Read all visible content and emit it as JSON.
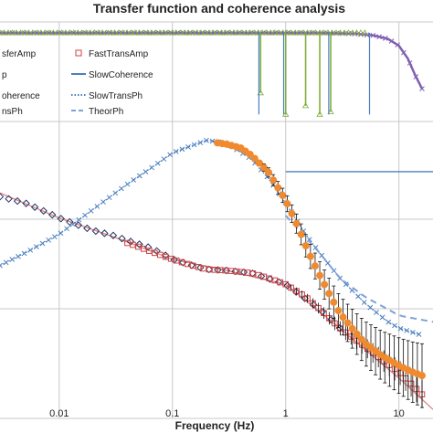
{
  "chart_data": {
    "type": "scatter",
    "title": "Transfer function and coherence analysis",
    "xlabel": "Frequency (Hz)",
    "x_scale": "log",
    "xlim": [
      0.003,
      20
    ],
    "x_ticks": [
      "0.01",
      "0.1",
      "1",
      "10"
    ],
    "grid": true,
    "legend_position": "top-left",
    "legend": [
      {
        "text": "sferAmp",
        "kind": "diamond",
        "color": "#1f3864"
      },
      {
        "text": "FastTransAmp",
        "kind": "square",
        "color": "#d04040"
      },
      {
        "text": "p",
        "kind": "triangle",
        "color": "#7fae3c"
      },
      {
        "text": "SlowCoherence",
        "kind": "line",
        "color": "#4a7fc0"
      },
      {
        "text": "oherence",
        "kind": "xmark",
        "color": "#8060b0"
      },
      {
        "text": "SlowTransPh",
        "kind": "dotted",
        "color": "#4a7fc0"
      },
      {
        "text": "nsPh",
        "kind": "circle",
        "color": "#f08a2e"
      },
      {
        "text": "TheorPh",
        "kind": "dashed",
        "color": "#7fa0d8"
      }
    ],
    "colors": {
      "amp_diamond": "#1f3864",
      "fast_amp": "#d04040",
      "theory_amp": "#e08080",
      "coh_green": "#7fae3c",
      "coh_purple": "#8060b0",
      "slow_coherence": "#4a7fc0",
      "slow_phase": "#4a7fc0",
      "fast_phase": "#f08a2e",
      "theory_phase": "#7fa0d8",
      "error_bar": "#111111"
    },
    "fast_coherence": {
      "x": [
        0.003,
        0.01,
        0.05,
        0.1,
        0.3,
        0.5,
        0.6,
        0.8,
        1.0,
        1.5,
        2.0,
        2.5,
        3.0,
        5.0
      ],
      "y": [
        1.0,
        1.0,
        1.0,
        1.0,
        1.0,
        1.0,
        0.3,
        1.0,
        0.1,
        0.2,
        0.1,
        0.1,
        0.95,
        1.0
      ]
    },
    "slow_coherence": {
      "x": [
        0.003,
        0.1,
        1,
        2,
        4,
        6,
        8,
        10,
        12,
        14,
        16
      ],
      "y": [
        1.0,
        1.0,
        1.0,
        1.0,
        0.99,
        0.97,
        0.93,
        0.85,
        0.7,
        0.5,
        0.35
      ]
    },
    "slow_trans_ph": {
      "x": [
        0.003,
        0.005,
        0.01,
        0.02,
        0.04,
        0.07,
        0.1,
        0.15,
        0.2,
        0.3,
        0.5,
        0.7,
        1,
        1.5,
        2,
        3,
        5,
        8,
        10,
        15
      ],
      "y": [
        -60,
        -50,
        -35,
        -15,
        5,
        20,
        30,
        36,
        40,
        38,
        25,
        10,
        -10,
        -35,
        -50,
        -70,
        -90,
        -105,
        -110,
        -115
      ]
    },
    "fast_trans_ph": {
      "x": [
        0.25,
        0.3,
        0.4,
        0.5,
        0.7,
        1,
        1.3,
        1.6,
        2,
        2.5,
        3,
        4,
        5,
        7,
        10,
        13,
        16
      ],
      "y": [
        38,
        37,
        34,
        28,
        15,
        -8,
        -30,
        -50,
        -68,
        -85,
        -98,
        -112,
        -122,
        -132,
        -140,
        -145,
        -148
      ]
    },
    "theor_ph": {
      "x": [
        1,
        2,
        3,
        5,
        8,
        10,
        15,
        20
      ],
      "y": [
        -20,
        -50,
        -70,
        -85,
        -95,
        -100,
        -103,
        -105
      ]
    },
    "fast_trans_amp": {
      "x": [
        0.04,
        0.05,
        0.07,
        0.1,
        0.15,
        0.2,
        0.3,
        0.5,
        0.7,
        1,
        1.5,
        2,
        3,
        5,
        7,
        10,
        13,
        16
      ],
      "y": [
        -42,
        -45,
        -50,
        -55,
        -60,
        -63,
        -64,
        -66,
        -70,
        -75,
        -85,
        -95,
        -110,
        -125,
        -135,
        -145,
        -155,
        -163
      ]
    },
    "transfer_amp": {
      "x": [
        0.003,
        0.005,
        0.008,
        0.01,
        0.015,
        0.02,
        0.03,
        0.04,
        0.06,
        0.08,
        0.1,
        0.15,
        0.2,
        0.3,
        0.5,
        1,
        2,
        3
      ],
      "y": [
        -5,
        -10,
        -18,
        -22,
        -28,
        -32,
        -36,
        -40,
        -45,
        -50,
        -55,
        -60,
        -63,
        -64,
        -66,
        -75,
        -95,
        -110
      ]
    },
    "theory_amp": {
      "x": [
        0.003,
        0.01,
        0.03,
        0.1,
        0.3,
        1,
        3,
        10,
        20
      ],
      "y": [
        -2,
        -22,
        -37,
        -55,
        -64,
        -75,
        -110,
        -150,
        -175
      ]
    },
    "y_range": [
      -180,
      50
    ]
  }
}
